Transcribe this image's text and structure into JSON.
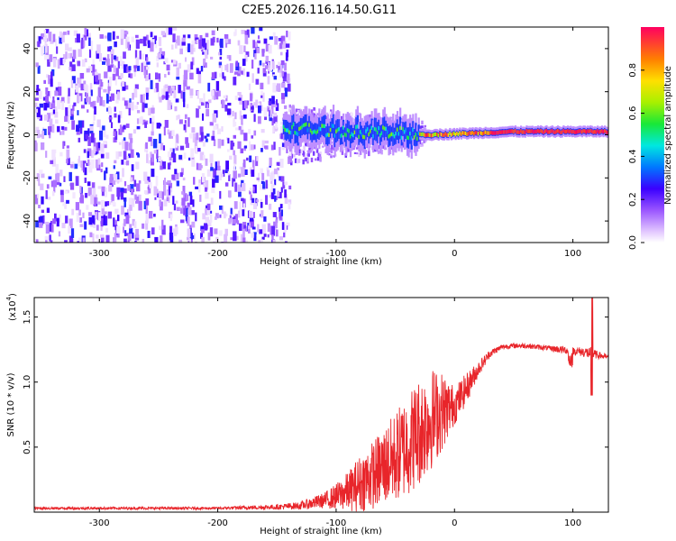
{
  "title": "C2E5.2026.116.14.50.G11",
  "colors": {
    "snr_line": "#e8252a",
    "frame": "#000000",
    "text": "#000000"
  },
  "chart_data": [
    {
      "type": "heatmap",
      "name": "spectrogram",
      "xlabel": "Height of straight line (km)",
      "ylabel": "Frequency (Hz)",
      "xlim": [
        -355,
        130
      ],
      "ylim": [
        -50,
        50
      ],
      "xticks": [
        -300,
        -200,
        -100,
        0,
        100
      ],
      "xtick_labels": [
        "-300",
        "-200",
        "-100",
        "0",
        "100"
      ],
      "yticks": [
        -40,
        -20,
        0,
        20,
        40
      ],
      "ytick_labels": [
        "-40",
        "-20",
        "0",
        "20",
        "40"
      ],
      "regions": [
        {
          "description": "broadband noise",
          "x_range": [
            -355,
            -140
          ],
          "freq_range": [
            -50,
            50
          ],
          "amplitude": [
            0.02,
            0.3
          ]
        },
        {
          "description": "noise tail",
          "x_range": [
            -140,
            -25
          ],
          "freq_range": [
            -15,
            12
          ],
          "amplitude": [
            0.02,
            0.2
          ]
        },
        {
          "description": "signal carrier",
          "x_range": [
            -145,
            130
          ],
          "freq_center": [
            3,
            0,
            1.5,
            1.5
          ],
          "amplitude": [
            0.3,
            1.0
          ]
        }
      ],
      "colorbar": {
        "label": "Normalized spectral amplitude",
        "range": [
          0,
          1
        ],
        "ticks": [
          0.0,
          0.2,
          0.4,
          0.6,
          0.8
        ],
        "tick_labels": [
          "0.0",
          "0.2",
          "0.4",
          "0.6",
          "0.8"
        ]
      }
    },
    {
      "type": "line",
      "name": "snr",
      "xlabel": "Height of straight line (km)",
      "ylabel": "SNR (10 * v/v)",
      "y_multiplier_label": "(x10",
      "y_multiplier_exp": "4",
      "y_multiplier_close": ")",
      "xlim": [
        -355,
        130
      ],
      "ylim": [
        0,
        1.65
      ],
      "xticks": [
        -300,
        -200,
        -100,
        0,
        100
      ],
      "xtick_labels": [
        "-300",
        "-200",
        "-100",
        "0",
        "100"
      ],
      "yticks": [
        0.5,
        1.0,
        1.5
      ],
      "ytick_labels": [
        "0.5",
        "1.0",
        "1.5"
      ],
      "series": [
        {
          "name": "SNR",
          "x": [
            -355,
            -300,
            -250,
            -200,
            -150,
            -130,
            -110,
            -100,
            -90,
            -80,
            -70,
            -60,
            -50,
            -40,
            -30,
            -20,
            -10,
            0,
            10,
            20,
            30,
            40,
            50,
            60,
            70,
            80,
            90,
            100,
            110,
            115,
            120,
            130
          ],
          "y": [
            0.03,
            0.03,
            0.03,
            0.03,
            0.04,
            0.05,
            0.09,
            0.12,
            0.16,
            0.22,
            0.28,
            0.35,
            0.42,
            0.52,
            0.62,
            0.72,
            0.78,
            0.82,
            0.95,
            1.1,
            1.22,
            1.27,
            1.28,
            1.28,
            1.27,
            1.26,
            1.25,
            1.24,
            1.23,
            1.22,
            1.21,
            1.19
          ],
          "spread": [
            0.01,
            0.01,
            0.01,
            0.01,
            0.02,
            0.03,
            0.06,
            0.1,
            0.15,
            0.22,
            0.26,
            0.3,
            0.35,
            0.4,
            0.42,
            0.4,
            0.3,
            0.15,
            0.12,
            0.06,
            0.03,
            0.02,
            0.02,
            0.02,
            0.02,
            0.02,
            0.03,
            0.03,
            0.04,
            0.05,
            0.03,
            0.02
          ]
        }
      ]
    }
  ]
}
